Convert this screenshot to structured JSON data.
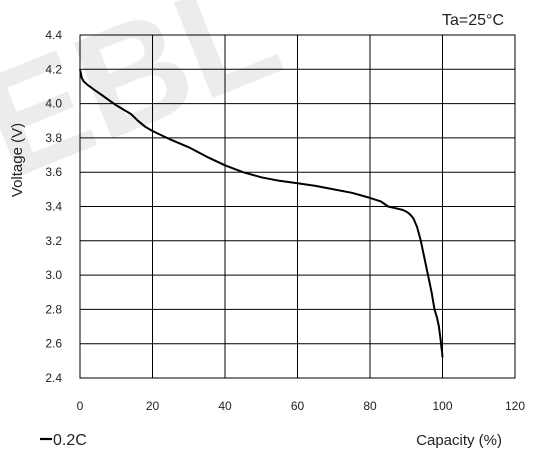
{
  "chart_data": {
    "type": "line",
    "title": "",
    "xlabel": "Capacity (%)",
    "ylabel": "Voltage (V)",
    "xlim": [
      0,
      120
    ],
    "ylim": [
      2.4,
      4.4
    ],
    "x_ticks": [
      0,
      20,
      40,
      60,
      80,
      100,
      120
    ],
    "x_tick_labels": [
      "0",
      "20",
      "40",
      "60",
      "80",
      "100",
      "120"
    ],
    "y_ticks": [
      2.4,
      2.6,
      2.8,
      3.0,
      3.2,
      3.4,
      3.6,
      3.8,
      4.0,
      4.2,
      4.4
    ],
    "y_tick_labels": [
      "2.4",
      "2.6",
      "2.8",
      "3.0",
      "3.2",
      "3.4",
      "3.6",
      "3.8",
      "4.0",
      "4.2",
      "4.4"
    ],
    "grid": true,
    "annotation": "Ta=25°C",
    "legend_position": "bottom-left",
    "series": [
      {
        "name": "0.2C",
        "color": "#000000",
        "x": [
          0,
          0.2,
          0.5,
          1,
          2,
          4,
          6,
          8,
          10,
          12,
          14,
          16,
          18,
          20,
          25,
          30,
          35,
          40,
          45,
          50,
          55,
          60,
          65,
          70,
          75,
          80,
          83,
          85,
          87,
          89,
          90,
          91,
          92,
          93,
          94,
          95,
          96,
          97,
          97.8,
          98.5,
          99,
          99.3,
          99.5,
          99.7,
          99.9,
          100
        ],
        "y": [
          4.2,
          4.18,
          4.15,
          4.13,
          4.11,
          4.08,
          4.05,
          4.02,
          3.99,
          3.965,
          3.94,
          3.9,
          3.865,
          3.84,
          3.79,
          3.745,
          3.69,
          3.64,
          3.6,
          3.57,
          3.55,
          3.535,
          3.52,
          3.5,
          3.48,
          3.45,
          3.43,
          3.4,
          3.39,
          3.38,
          3.37,
          3.355,
          3.33,
          3.28,
          3.2,
          3.1,
          3.0,
          2.9,
          2.8,
          2.75,
          2.7,
          2.65,
          2.62,
          2.58,
          2.55,
          2.52
        ]
      }
    ]
  },
  "watermark_text": "EBL"
}
